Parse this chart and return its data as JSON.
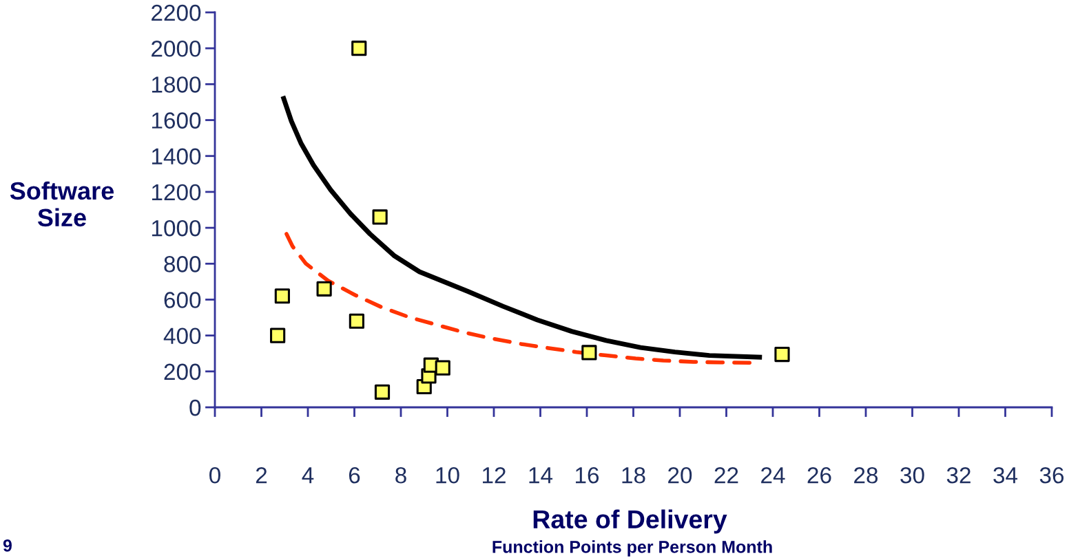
{
  "chart_data": {
    "type": "scatter",
    "ylabel": "Software Size",
    "xlabel": "Rate of Delivery",
    "xlim": [
      0,
      36
    ],
    "xticks": [
      0,
      2,
      4,
      6,
      8,
      10,
      12,
      14,
      16,
      18,
      20,
      22,
      24,
      26,
      28,
      30,
      32,
      34,
      36
    ],
    "ylim": [
      0,
      2200
    ],
    "yticks": [
      0,
      200,
      400,
      600,
      800,
      1000,
      1200,
      1400,
      1600,
      1800,
      2000,
      2200
    ],
    "grid": false,
    "legend": false,
    "marker": "square",
    "series": [
      {
        "color": "#ffff66",
        "x": [
          6.2,
          7.1,
          2.9,
          2.7,
          4.7,
          6.1,
          7.2,
          9.0,
          9.2,
          9.3,
          9.8,
          16.1,
          24.4
        ],
        "values": [
          2000,
          1060,
          620,
          400,
          660,
          480,
          85,
          115,
          175,
          235,
          220,
          305,
          295
        ]
      },
      {
        "type": "line",
        "color": "#000000",
        "line_style": "solid",
        "marker": "none",
        "x": [
          2.96,
          3.29,
          3.7,
          4.24,
          4.98,
          5.84,
          6.67,
          7.73,
          8.8,
          10.9,
          12.39,
          13.87,
          15.35,
          16.83,
          18.31,
          19.79,
          21.27,
          23.43
        ],
        "values": [
          1720,
          1594,
          1472,
          1349,
          1211,
          1077,
          966,
          843,
          755,
          645,
          563,
          487,
          423,
          372,
          333,
          308,
          289,
          279
        ]
      },
      {
        "type": "line",
        "color": "#ff3300",
        "line_style": "dashed",
        "marker": "none",
        "x": [
          3.08,
          3.34,
          3.91,
          4.87,
          6.04,
          7.2,
          8.36,
          9.53,
          10.7,
          11.88,
          13.17,
          14.36,
          15.55,
          16.83,
          18.1,
          19.29,
          20.58,
          21.76,
          23.05
        ],
        "values": [
          966,
          897,
          801,
          705,
          625,
          556,
          502,
          460,
          418,
          384,
          353,
          330,
          308,
          289,
          272,
          261,
          253,
          250,
          248
        ]
      }
    ],
    "annotations": [
      "Function Points per Person Month",
      "9"
    ]
  }
}
